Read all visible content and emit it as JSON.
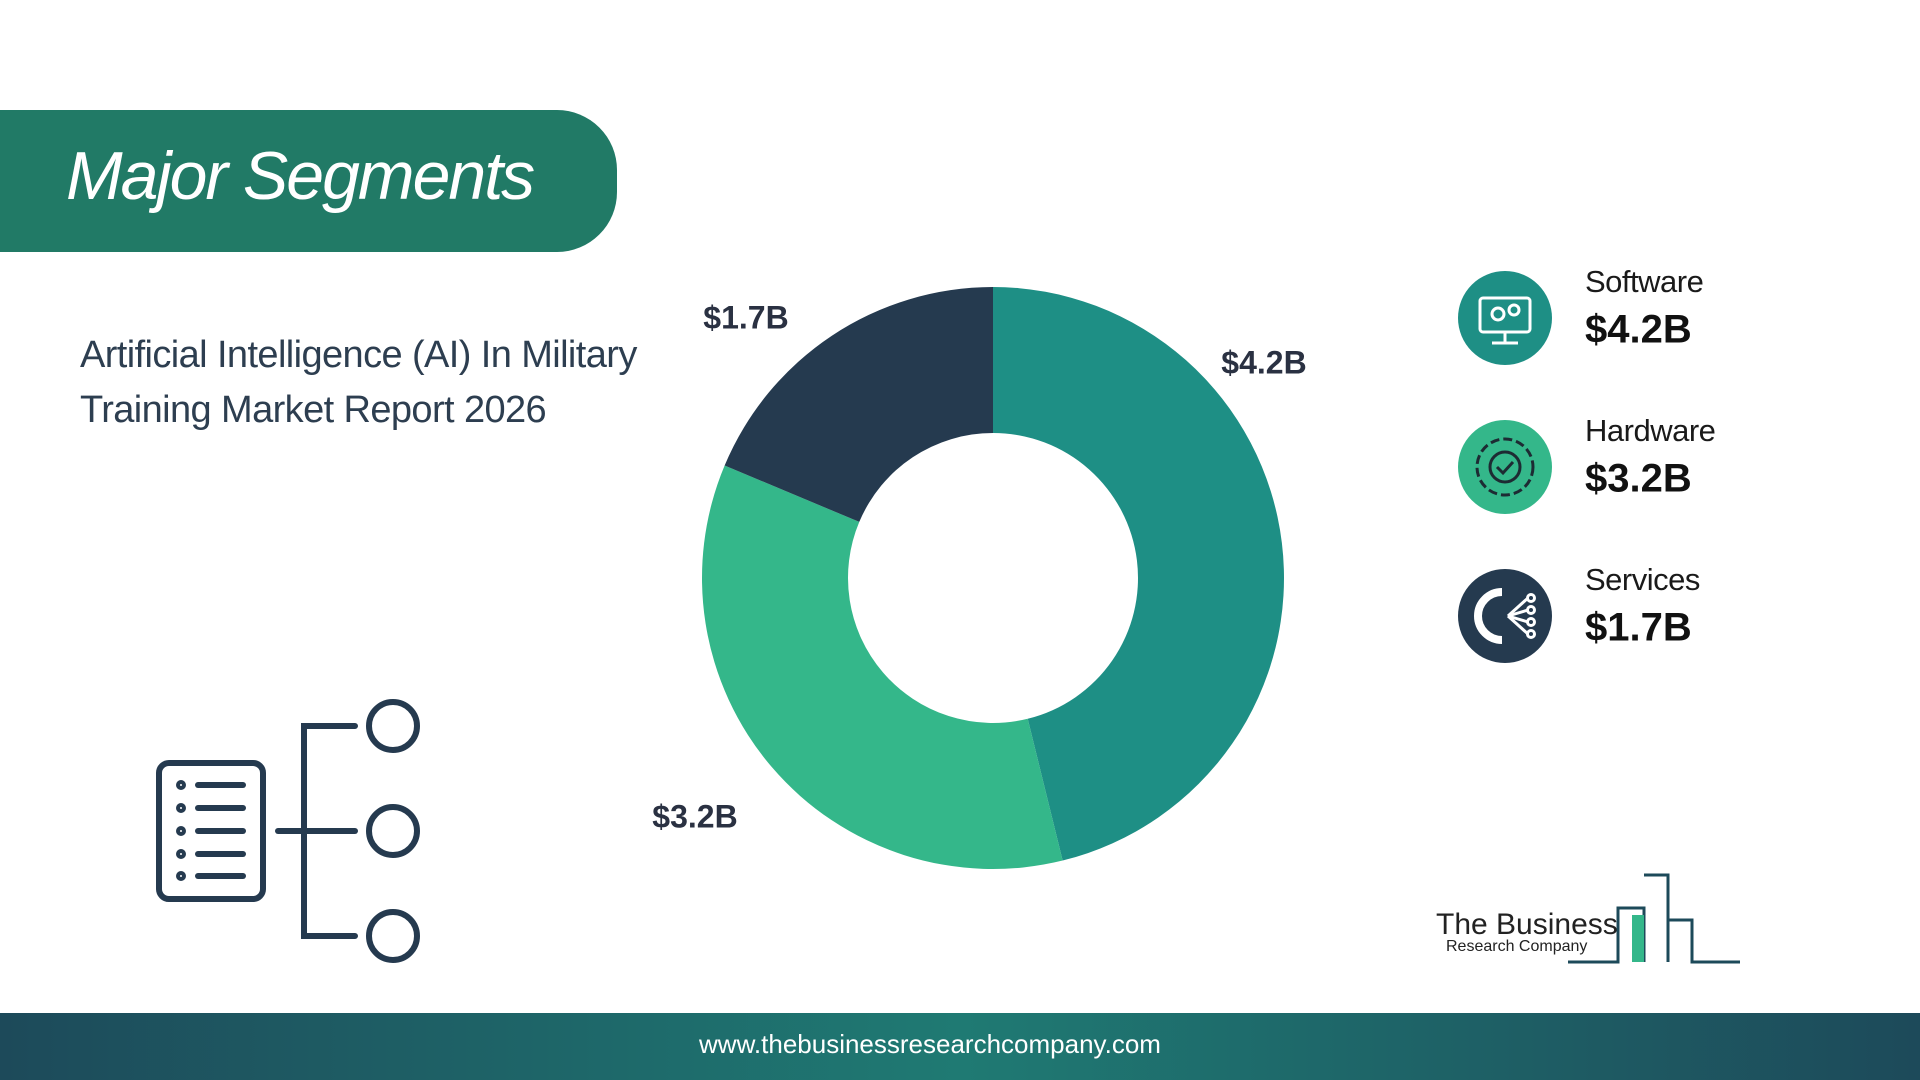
{
  "chart_data": {
    "type": "donut",
    "title": "Major Segments",
    "subtitle": "Artificial Intelligence (AI) In Military Training Market Report 2026",
    "categories": [
      "Software",
      "Hardware",
      "Services"
    ],
    "values": [
      4.2,
      3.2,
      1.7
    ],
    "value_labels": [
      "$4.2B",
      "$3.2B",
      "$1.7B"
    ],
    "colors": [
      "#1e8f85",
      "#34b78a",
      "#253a4f"
    ]
  },
  "logo": {
    "line1": "The Business",
    "line2": "Research Company"
  },
  "footer": "www.thebusinessresearchcompany.com"
}
